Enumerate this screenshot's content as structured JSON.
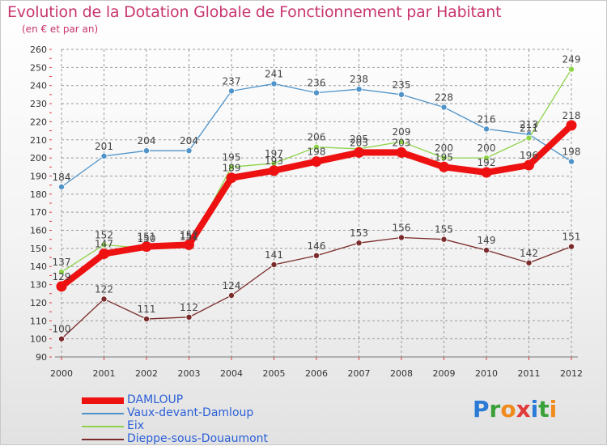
{
  "title": "Evolution de la Dotation Globale de Fonctionnement par Habitant",
  "subtitle": "(en € et par an)",
  "logo_text": "Proxiti",
  "colors": {
    "title": "#c8366f",
    "legend_text": "#2a5fd8",
    "grid": "#9a9a9a",
    "axis_ticks": "#e03a3a"
  },
  "chart_data": {
    "type": "line",
    "title": "Evolution de la Dotation Globale de Fonctionnement par Habitant",
    "subtitle": "(en € et par an)",
    "xlabel": "",
    "ylabel": "",
    "ylim": [
      90,
      260
    ],
    "y_ticks": [
      90,
      100,
      110,
      120,
      130,
      140,
      150,
      160,
      170,
      180,
      190,
      200,
      210,
      220,
      230,
      240,
      250,
      260
    ],
    "grid": true,
    "legend_position": "bottom-left",
    "categories": [
      "2000",
      "2001",
      "2002",
      "2003",
      "2004",
      "2005",
      "2006",
      "2007",
      "2008",
      "2009",
      "2010",
      "2011",
      "2012"
    ],
    "series": [
      {
        "name": "DAMLOUP",
        "color": "#ee1111",
        "emphasis": true,
        "values": [
          129,
          147,
          151,
          152,
          189,
          193,
          198,
          203,
          203,
          195,
          192,
          196,
          218
        ],
        "labels": [
          "129",
          "147",
          "151",
          "152",
          "189",
          "193",
          "198",
          "203",
          "203",
          "195",
          "192",
          "196",
          "218"
        ]
      },
      {
        "name": "Vaux-devant-Damloup",
        "color": "#4f93c9",
        "emphasis": false,
        "values": [
          184,
          201,
          204,
          204,
          237,
          241,
          236,
          238,
          235,
          228,
          216,
          213,
          198
        ],
        "labels": [
          "184",
          "201",
          "204",
          "204",
          "237",
          "241",
          "236",
          "238",
          "235",
          "228",
          "216",
          "213",
          "198"
        ]
      },
      {
        "name": "Eix",
        "color": "#8ed34a",
        "emphasis": false,
        "values": [
          137,
          152,
          150,
          151,
          195,
          197,
          206,
          205,
          209,
          200,
          200,
          211,
          249
        ],
        "labels": [
          "137",
          "152",
          "150",
          "151",
          "195",
          "197",
          "206",
          "205",
          "209",
          "200",
          "200",
          "211",
          "249"
        ]
      },
      {
        "name": "Dieppe-sous-Douaumont",
        "color": "#7a2b2b",
        "emphasis": false,
        "values": [
          100,
          122,
          111,
          112,
          124,
          141,
          146,
          153,
          156,
          155,
          149,
          142,
          151
        ],
        "labels": [
          "100",
          "122",
          "111",
          "112",
          "124",
          "141",
          "146",
          "153",
          "156",
          "155",
          "149",
          "142",
          "151"
        ]
      }
    ]
  }
}
